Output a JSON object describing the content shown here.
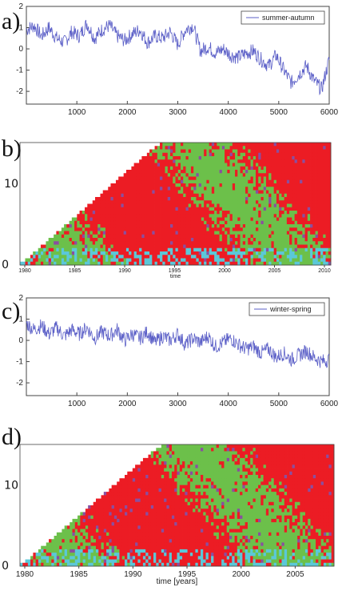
{
  "colors": {
    "series": "#5b5fc7",
    "red": "#ec1c24",
    "green": "#6cc04a",
    "cyan": "#5bc8d8",
    "purple": "#8a4fa0",
    "axis": "#444444"
  },
  "panels": [
    {
      "label": "a)"
    },
    {
      "label": "b)"
    },
    {
      "label": "c)"
    },
    {
      "label": "d)"
    }
  ],
  "chart_data": [
    {
      "type": "line",
      "panel": "a)",
      "series": [
        {
          "name": "summer-autumn",
          "x": [
            0,
            150,
            300,
            450,
            600,
            750,
            900,
            1050,
            1200,
            1350,
            1500,
            1650,
            1800,
            1950,
            2100,
            2250,
            2400,
            2550,
            2700,
            2850,
            3000,
            3150,
            3300,
            3450,
            3600,
            3750,
            3900,
            4050,
            4200,
            4350,
            4500,
            4650,
            4800,
            4950,
            5100,
            5250,
            5400,
            5550,
            5700,
            5850,
            6000
          ],
          "y": [
            0.9,
            1.1,
            0.6,
            1.0,
            0.5,
            0.3,
            0.8,
            0.6,
            1.2,
            0.5,
            0.9,
            1.1,
            0.6,
            0.4,
            0.7,
            0.9,
            0.3,
            0.6,
            0.5,
            0.8,
            0.2,
            0.9,
            1.1,
            -0.1,
            0.1,
            -0.2,
            0.0,
            -0.3,
            -0.4,
            -0.2,
            -0.1,
            -0.5,
            -0.8,
            -0.3,
            -1.0,
            -1.6,
            -1.2,
            -0.8,
            -1.5,
            -1.9,
            -0.5
          ]
        }
      ],
      "xticks": [
        1000,
        2000,
        3000,
        4000,
        5000,
        6000
      ],
      "yticks": [
        -2,
        -1,
        0,
        1,
        2
      ],
      "xlim": [
        0,
        6000
      ],
      "ylim": [
        -2.6,
        2.0
      ],
      "legend": "top-right"
    },
    {
      "type": "heatmap",
      "panel": "b)",
      "xticks": [
        "1980",
        "1985",
        "1990",
        "1995",
        "2000",
        "2005",
        "2010"
      ],
      "xlabel": "time",
      "yticks": [
        "0",
        "10"
      ],
      "ylim": [
        0,
        15
      ],
      "colors_present": [
        "red",
        "green",
        "cyan",
        "purple"
      ]
    },
    {
      "type": "line",
      "panel": "c)",
      "series": [
        {
          "name": "winter-spring",
          "x": [
            0,
            150,
            300,
            450,
            600,
            750,
            900,
            1050,
            1200,
            1350,
            1500,
            1650,
            1800,
            1950,
            2100,
            2250,
            2400,
            2550,
            2700,
            2850,
            3000,
            3150,
            3300,
            3450,
            3600,
            3750,
            3900,
            4050,
            4200,
            4350,
            4500,
            4650,
            4800,
            4950,
            5100,
            5250,
            5400,
            5550,
            5700,
            5850,
            6000
          ],
          "y": [
            0.8,
            0.5,
            0.7,
            0.3,
            0.6,
            0.2,
            0.5,
            0.3,
            0.6,
            0.1,
            0.4,
            0.2,
            0.5,
            0.0,
            0.3,
            0.1,
            0.4,
            -0.1,
            0.2,
            0.0,
            0.3,
            -0.2,
            0.1,
            -0.1,
            0.2,
            -0.3,
            -0.1,
            0.1,
            -0.2,
            -0.4,
            -0.3,
            -0.6,
            -0.4,
            -0.8,
            -0.6,
            -0.9,
            -0.7,
            -0.5,
            -0.8,
            -1.0,
            -0.9
          ]
        }
      ],
      "xticks": [
        1000,
        2000,
        3000,
        4000,
        5000,
        6000
      ],
      "yticks": [
        -2,
        -1,
        0,
        1,
        2
      ],
      "xlim": [
        0,
        6000
      ],
      "ylim": [
        -2.6,
        2.0
      ],
      "legend": "top-right"
    },
    {
      "type": "heatmap",
      "panel": "d)",
      "xticks": [
        "1980",
        "1985",
        "1990",
        "1995",
        "2000",
        "2005"
      ],
      "xlabel": "time [years]",
      "yticks": [
        "0",
        "10"
      ],
      "ylim": [
        0,
        15
      ],
      "colors_present": [
        "red",
        "green",
        "cyan",
        "purple"
      ]
    }
  ]
}
